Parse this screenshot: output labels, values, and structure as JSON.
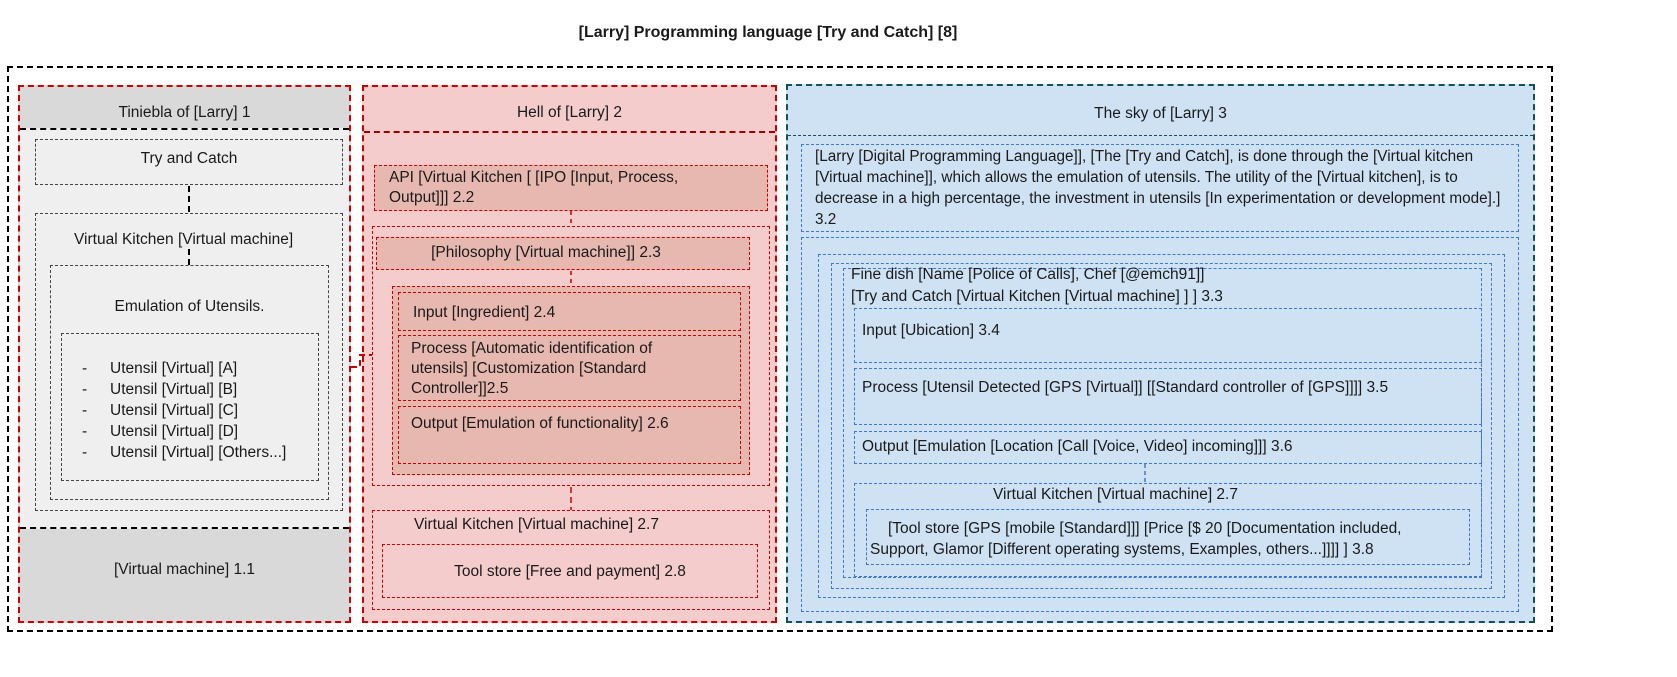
{
  "title": "[Larry] Programming language [Try and Catch] [8]",
  "colors": {
    "gray_panel": "#d9d9d9",
    "gray_box": "#efefef",
    "red_panel": "#f4cccc",
    "red_box": "#e6b8af",
    "red_border": "#cc0000",
    "dark_red_border": "#990000",
    "blue_panel": "#cfe2f3",
    "blue_border": "#134f5c",
    "blue_dash": "#3c78d8"
  },
  "panel1": {
    "header": "Tiniebla of [Larry] 1",
    "try_catch": "Try and Catch",
    "virtual_kitchen": "Virtual Kitchen [Virtual machine]",
    "emulation": "Emulation of Utensils.",
    "utensils": [
      "Utensil [Virtual] [A]",
      "Utensil [Virtual] [B]",
      "Utensil [Virtual] [C]",
      "Utensil [Virtual] [D]",
      "Utensil [Virtual] [Others...]"
    ],
    "bullet": "-",
    "footer": "[Virtual machine]  1.1"
  },
  "panel2": {
    "header": "Hell of [Larry]  2",
    "api": "API [Virtual Kitchen [ [IPO [Input, Process, Output]]] 2.2",
    "philosophy": "[Philosophy [Virtual machine]] 2.3",
    "input": "Input [Ingredient] 2.4",
    "process": "Process [Automatic identification of utensils] [Customization [Standard Controller]]2.5",
    "output": "Output [Emulation of functionality] 2.6",
    "vk": "Virtual Kitchen [Virtual machine]  2.7",
    "tool_store": "Tool store [Free and payment] 2.8"
  },
  "panel3": {
    "header": "The sky of [Larry]  3",
    "desc": "[Larry [Digital Programming Language]], [The [Try and Catch], is done through the [Virtual kitchen [Virtual machine]], which allows the emulation of utensils. The utility of the [Virtual kitchen], is to decrease in a high percentage, the investment in utensils [In experimentation or development mode].] 3.2",
    "fine_dish_line1": "Fine dish [Name [Police of Calls], Chef [@emch91]]",
    "fine_dish_line2": "[Try and Catch [Virtual Kitchen [Virtual machine] ] ] 3.3",
    "input": "Input [Ubication] 3.4",
    "process": "Process [Utensil Detected [GPS [Virtual]] [[Standard controller of [GPS]]]] 3.5",
    "output": "Output [Emulation [Location [Call [Voice, Video] incoming]]] 3.6",
    "vk": "Virtual Kitchen [Virtual machine]  2.7",
    "tool_store_line1": "[Tool store [GPS [mobile [Standard]]] [Price [$ 20 [Documentation included,",
    "tool_store_line2": "Support, Glamor [Different operating systems, Examples, others...]]]] ] 3.8"
  }
}
